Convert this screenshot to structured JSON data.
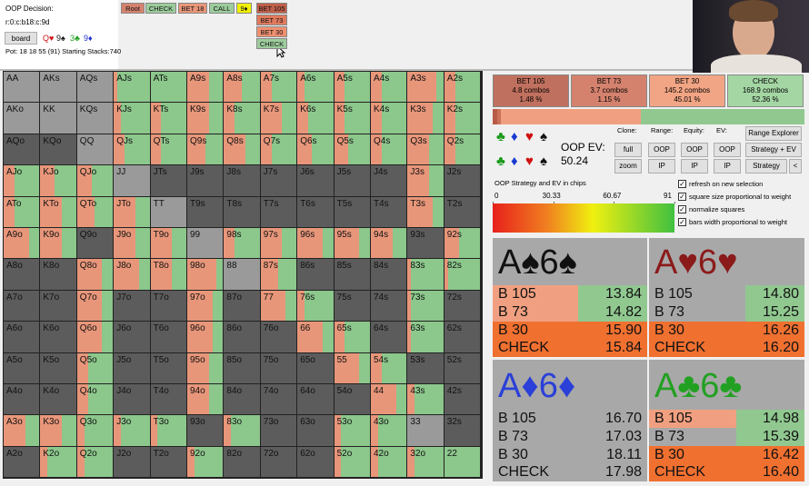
{
  "header": {
    "decision_label": "OOP Decision:",
    "node": "r:0:c:b18:c:9d",
    "board_button": "board",
    "board_cards": [
      "Q♥",
      "9♠",
      "3♣",
      "9♦"
    ],
    "pot": "Pot: 18 18 55 (91) Starting Stacks:740"
  },
  "line": {
    "history": [
      "Root",
      "CHECK",
      "BET 18",
      "CALL",
      "9♦"
    ],
    "options": [
      "BET 105",
      "BET 73",
      "BET 30",
      "CHECK"
    ]
  },
  "matrix": {
    "labels": [
      [
        "AA",
        "AKs",
        "AQs",
        "AJs",
        "ATs",
        "A9s",
        "A8s",
        "A7s",
        "A6s",
        "A5s",
        "A4s",
        "A3s",
        "A2s"
      ],
      [
        "AKo",
        "KK",
        "KQs",
        "KJs",
        "KTs",
        "K9s",
        "K8s",
        "K7s",
        "K6s",
        "K5s",
        "K4s",
        "K3s",
        "K2s"
      ],
      [
        "AQo",
        "KQo",
        "QQ",
        "QJs",
        "QTs",
        "Q9s",
        "Q8s",
        "Q7s",
        "Q6s",
        "Q5s",
        "Q4s",
        "Q3s",
        "Q2s"
      ],
      [
        "AJo",
        "KJo",
        "QJo",
        "JJ",
        "JTs",
        "J9s",
        "J8s",
        "J7s",
        "J6s",
        "J5s",
        "J4s",
        "J3s",
        "J2s"
      ],
      [
        "ATo",
        "KTo",
        "QTo",
        "JTo",
        "TT",
        "T9s",
        "T8s",
        "T7s",
        "T6s",
        "T5s",
        "T4s",
        "T3s",
        "T2s"
      ],
      [
        "A9o",
        "K9o",
        "Q9o",
        "J9o",
        "T9o",
        "99",
        "98s",
        "97s",
        "96s",
        "95s",
        "94s",
        "93s",
        "92s"
      ],
      [
        "A8o",
        "K8o",
        "Q8o",
        "J8o",
        "T8o",
        "98o",
        "88",
        "87s",
        "86s",
        "85s",
        "84s",
        "83s",
        "82s"
      ],
      [
        "A7o",
        "K7o",
        "Q7o",
        "J7o",
        "T7o",
        "97o",
        "87o",
        "77",
        "76s",
        "75s",
        "74s",
        "73s",
        "72s"
      ],
      [
        "A6o",
        "K6o",
        "Q6o",
        "J6o",
        "T6o",
        "96o",
        "86o",
        "76o",
        "66",
        "65s",
        "64s",
        "63s",
        "62s"
      ],
      [
        "A5o",
        "K5o",
        "Q5o",
        "J5o",
        "T5o",
        "95o",
        "85o",
        "75o",
        "65o",
        "55",
        "54s",
        "53s",
        "52s"
      ],
      [
        "A4o",
        "K4o",
        "Q4o",
        "J4o",
        "T4o",
        "94o",
        "84o",
        "74o",
        "64o",
        "54o",
        "44",
        "43s",
        "42s"
      ],
      [
        "A3o",
        "K3o",
        "Q3o",
        "J3o",
        "T3o",
        "93o",
        "83o",
        "73o",
        "63o",
        "53o",
        "43o",
        "33",
        "32s"
      ],
      [
        "A2o",
        "K2o",
        "Q2o",
        "J2o",
        "T2o",
        "92o",
        "82o",
        "72o",
        "62o",
        "52o",
        "42o",
        "32o",
        "22"
      ]
    ],
    "strategy": [
      [
        [
          0,
          0
        ],
        [
          0,
          0
        ],
        [
          0,
          0
        ],
        [
          0.1,
          0.9
        ],
        [
          0,
          1
        ],
        [
          0.6,
          0.4
        ],
        [
          0.5,
          0.5
        ],
        [
          0.3,
          0.7
        ],
        [
          0.2,
          0.8
        ],
        [
          0.3,
          0.7
        ],
        [
          0.3,
          0.7
        ],
        [
          0.8,
          0.2
        ],
        [
          0.3,
          0.7
        ]
      ],
      [
        [
          0,
          0
        ],
        [
          0,
          0
        ],
        [
          0,
          0
        ],
        [
          0.2,
          0.8
        ],
        [
          0.3,
          0.7
        ],
        [
          0.6,
          0.4
        ],
        [
          0.3,
          0.7
        ],
        [
          0.6,
          0.4
        ],
        [
          0.3,
          0.7
        ],
        [
          0.3,
          0.7
        ],
        [
          0.3,
          0.7
        ],
        [
          0.7,
          0.3
        ],
        [
          0.3,
          0.7
        ]
      ],
      [
        null,
        null,
        [
          0,
          0
        ],
        [
          0.3,
          0.7
        ],
        [
          0.3,
          0.7
        ],
        [
          0.5,
          0.5
        ],
        [
          0.6,
          0.4
        ],
        [
          0.3,
          0.7
        ],
        [
          0.4,
          0.6
        ],
        [
          0.4,
          0.6
        ],
        [
          0.3,
          0.7
        ],
        [
          0.6,
          0.4
        ],
        [
          0.3,
          0.7
        ]
      ],
      [
        [
          0.3,
          0.7
        ],
        [
          0.4,
          0.6
        ],
        [
          0.4,
          0.6
        ],
        [
          0,
          0
        ],
        null,
        null,
        null,
        null,
        null,
        null,
        null,
        [
          0.6,
          0.4
        ],
        null
      ],
      [
        [
          0.3,
          0.7
        ],
        [
          0.6,
          0.4
        ],
        [
          0.5,
          0.5
        ],
        [
          0.6,
          0.4
        ],
        [
          0,
          0
        ],
        null,
        null,
        null,
        null,
        null,
        null,
        [
          0.7,
          0.3
        ],
        null
      ],
      [
        [
          0.7,
          0.3
        ],
        [
          0.6,
          0.4
        ],
        null,
        [
          0.6,
          0.4
        ],
        [
          0.6,
          0.4
        ],
        [
          0,
          0
        ],
        [
          0.3,
          0.7
        ],
        [
          0.6,
          0.4
        ],
        [
          0.7,
          0.3
        ],
        [
          0.7,
          0.3
        ],
        [
          0.6,
          0.4
        ],
        null,
        [
          0.4,
          0.6
        ]
      ],
      [
        null,
        null,
        [
          0.7,
          0.3
        ],
        [
          0.7,
          0.3
        ],
        [
          0.6,
          0.4
        ],
        [
          0.8,
          0.2
        ],
        [
          0,
          0
        ],
        [
          0.5,
          0.5
        ],
        null,
        null,
        null,
        [
          0.1,
          0.9
        ],
        [
          0.1,
          0.9
        ]
      ],
      [
        null,
        null,
        [
          0.7,
          0.3
        ],
        null,
        null,
        [
          0.7,
          0.3
        ],
        null,
        [
          0.7,
          0.3
        ],
        [
          0.2,
          0.8
        ],
        null,
        null,
        [
          0.1,
          0.9
        ],
        null
      ],
      [
        null,
        null,
        [
          0.7,
          0.3
        ],
        null,
        null,
        [
          0.7,
          0.3
        ],
        null,
        null,
        [
          0.7,
          0.3
        ],
        [
          0.3,
          0.7
        ],
        null,
        [
          0.1,
          0.9
        ],
        null
      ],
      [
        null,
        null,
        [
          0.3,
          0.7
        ],
        null,
        null,
        [
          0.6,
          0.4
        ],
        null,
        null,
        null,
        [
          0.7,
          0.3
        ],
        [
          0.3,
          0.7
        ],
        null,
        null
      ],
      [
        null,
        null,
        [
          0.3,
          0.7
        ],
        null,
        null,
        [
          0.6,
          0.4
        ],
        null,
        null,
        null,
        null,
        [
          0.7,
          0.3
        ],
        [
          0.2,
          0.8
        ],
        null
      ],
      [
        [
          0.6,
          0.4
        ],
        [
          0.6,
          0.4
        ],
        [
          0.2,
          0.8
        ],
        [
          0.2,
          0.8
        ],
        [
          0.2,
          0.8
        ],
        null,
        [
          0.2,
          0.8
        ],
        null,
        null,
        [
          0.2,
          0.8
        ],
        [
          0.2,
          0.8
        ],
        [
          0,
          0
        ],
        null
      ],
      [
        null,
        [
          0.2,
          0.8
        ],
        [
          0.2,
          0.8
        ],
        null,
        null,
        [
          0.2,
          0.8
        ],
        null,
        null,
        null,
        [
          0.2,
          0.8
        ],
        [
          0.2,
          0.8
        ],
        [
          0.2,
          0.8
        ],
        [
          0,
          1
        ]
      ]
    ]
  },
  "actions": {
    "names": [
      "BET 105",
      "BET 73",
      "BET 30",
      "CHECK"
    ],
    "combos": [
      "4.8 combos",
      "3.7 combos",
      "145.2 combos",
      "168.9 combos"
    ],
    "values": [
      1.48,
      1.15,
      45.01,
      52.36
    ],
    "value_labels": [
      "1.48 %",
      "1.15 %",
      "45.01 %",
      "52.36 %"
    ]
  },
  "controls": {
    "suits": [
      "♣",
      "♦",
      "♥",
      "♠"
    ],
    "ev_label": "OOP EV:",
    "ev": "50.24",
    "headers": [
      "Clone:",
      "Range:",
      "Equity:",
      "EV:"
    ],
    "row1": [
      "full",
      "OOP",
      "OOP",
      "OOP"
    ],
    "row2": [
      "zoom",
      "IP",
      "IP",
      "IP"
    ],
    "side": [
      "Range Explorer",
      "Strategy + EV",
      "Strategy",
      "<"
    ],
    "caption": "OOP Strategy and EV in chips",
    "checkboxes": [
      "refresh on new selection",
      "square size proportional to weight",
      "normalize squares",
      "bars width proportional to weight"
    ]
  },
  "scale": {
    "xlim": [
      0,
      91
    ],
    "xticks": [
      0,
      30.33,
      60.67,
      91
    ]
  },
  "combos": [
    {
      "title": "A♠6♠",
      "rows": [
        {
          "action": "B 105",
          "ev": "13.84"
        },
        {
          "action": "B 73",
          "ev": "14.82"
        },
        {
          "action": "B 30",
          "ev": "15.90"
        },
        {
          "action": "CHECK",
          "ev": "15.84"
        }
      ]
    },
    {
      "title": "A♥6♥",
      "rows": [
        {
          "action": "B 105",
          "ev": "14.80"
        },
        {
          "action": "B 73",
          "ev": "15.25"
        },
        {
          "action": "B 30",
          "ev": "16.26"
        },
        {
          "action": "CHECK",
          "ev": "16.20"
        }
      ]
    },
    {
      "title": "A♦6♦",
      "rows": [
        {
          "action": "B 105",
          "ev": "16.70"
        },
        {
          "action": "B 73",
          "ev": "17.03"
        },
        {
          "action": "B 30",
          "ev": "18.11"
        },
        {
          "action": "CHECK",
          "ev": "17.98"
        }
      ]
    },
    {
      "title": "A♣6♣",
      "rows": [
        {
          "action": "B 105",
          "ev": "14.98"
        },
        {
          "action": "B 73",
          "ev": "15.39"
        },
        {
          "action": "B 30",
          "ev": "16.42"
        },
        {
          "action": "CHECK",
          "ev": "16.40"
        }
      ]
    }
  ]
}
